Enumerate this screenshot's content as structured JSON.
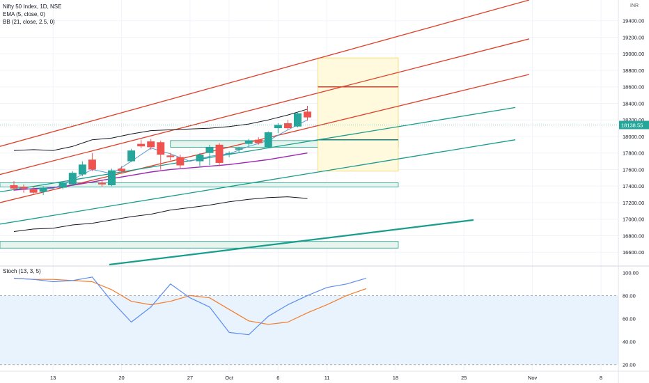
{
  "header": {
    "title": "Nifty 50 Index, 1D, NSE",
    "ema": "EMA (5, close, 0)",
    "bb": "BB (21, close, 2.5, 0)",
    "currency": "INR"
  },
  "colors": {
    "up": "#26a69a",
    "down": "#ef5350",
    "ema": "#5b9bd5",
    "bb_band": "#131722",
    "bb_basis": "#9c27b0",
    "channel_red": "#e0402a",
    "channel_teal": "#179d8c",
    "stoch_k": "#5b8def",
    "stoch_d": "#f57c2a",
    "zone_fill": "#e8f5ee",
    "target_fill": "#fff9dd",
    "stoch_bg": "#e8f3fd"
  },
  "chart_data": {
    "type": "candlestick",
    "price_axis": {
      "ylim": [
        16450,
        19650
      ],
      "ticks": [
        "16600.00",
        "16800.00",
        "17000.00",
        "17200.00",
        "17400.00",
        "17600.00",
        "17800.00",
        "18000.00",
        "18200.00",
        "18400.00",
        "18600.00",
        "18800.00",
        "19000.00",
        "19200.00",
        "19400.00"
      ],
      "last_price": "18138.55"
    },
    "time_axis": {
      "labels": [
        {
          "text": "13",
          "day": 13
        },
        {
          "text": "20",
          "day": 20
        },
        {
          "text": "27",
          "day": 27
        },
        {
          "text": "Oct",
          "day": 31
        },
        {
          "text": "6",
          "day": 36
        },
        {
          "text": "11",
          "day": 41
        },
        {
          "text": "18",
          "day": 48
        },
        {
          "text": "25",
          "day": 55
        },
        {
          "text": "Nov",
          "day": 62
        },
        {
          "text": "8",
          "day": 69
        }
      ]
    },
    "candles": [
      {
        "d": 9,
        "o": 17410,
        "h": 17460,
        "l": 17340,
        "c": 17370
      },
      {
        "d": 10,
        "o": 17390,
        "h": 17420,
        "l": 17320,
        "c": 17370
      },
      {
        "d": 11,
        "o": 17360,
        "h": 17400,
        "l": 17310,
        "c": 17320
      },
      {
        "d": 12,
        "o": 17330,
        "h": 17400,
        "l": 17290,
        "c": 17380
      },
      {
        "d": 14,
        "o": 17380,
        "h": 17460,
        "l": 17360,
        "c": 17440
      },
      {
        "d": 15,
        "o": 17420,
        "h": 17580,
        "l": 17410,
        "c": 17560
      },
      {
        "d": 16,
        "o": 17540,
        "h": 17700,
        "l": 17520,
        "c": 17660
      },
      {
        "d": 17,
        "o": 17720,
        "h": 17800,
        "l": 17580,
        "c": 17600
      },
      {
        "d": 18,
        "o": 17440,
        "h": 17480,
        "l": 17390,
        "c": 17420
      },
      {
        "d": 19,
        "o": 17410,
        "h": 17610,
        "l": 17400,
        "c": 17590
      },
      {
        "d": 20,
        "o": 17610,
        "h": 17640,
        "l": 17560,
        "c": 17580
      },
      {
        "d": 21,
        "o": 17700,
        "h": 17850,
        "l": 17690,
        "c": 17830
      },
      {
        "d": 22,
        "o": 17910,
        "h": 17960,
        "l": 17860,
        "c": 17880
      },
      {
        "d": 23,
        "o": 17940,
        "h": 17970,
        "l": 17840,
        "c": 17870
      },
      {
        "d": 24,
        "o": 17930,
        "h": 17950,
        "l": 17600,
        "c": 17780
      },
      {
        "d": 25,
        "o": 17770,
        "h": 17800,
        "l": 17710,
        "c": 17750
      },
      {
        "d": 26,
        "o": 17750,
        "h": 17780,
        "l": 17620,
        "c": 17650
      },
      {
        "d": 28,
        "o": 17700,
        "h": 17800,
        "l": 17640,
        "c": 17780
      },
      {
        "d": 29,
        "o": 17800,
        "h": 17900,
        "l": 17650,
        "c": 17870
      },
      {
        "d": 30,
        "o": 17900,
        "h": 17920,
        "l": 17640,
        "c": 17680
      },
      {
        "d": 31,
        "o": 17790,
        "h": 17820,
        "l": 17750,
        "c": 17800
      },
      {
        "d": 32,
        "o": 17840,
        "h": 17870,
        "l": 17810,
        "c": 17860
      },
      {
        "d": 33,
        "o": 17910,
        "h": 17970,
        "l": 17880,
        "c": 17950
      },
      {
        "d": 34,
        "o": 17960,
        "h": 17990,
        "l": 17900,
        "c": 17920
      },
      {
        "d": 35,
        "o": 17870,
        "h": 18060,
        "l": 17860,
        "c": 18050
      },
      {
        "d": 36,
        "o": 18100,
        "h": 18160,
        "l": 18040,
        "c": 18140
      },
      {
        "d": 37,
        "o": 18160,
        "h": 18200,
        "l": 18080,
        "c": 18100
      },
      {
        "d": 38,
        "o": 18120,
        "h": 18300,
        "l": 18110,
        "c": 18280
      },
      {
        "d": 39,
        "o": 18300,
        "h": 18370,
        "l": 18190,
        "c": 18230
      }
    ],
    "ema": [
      [
        9,
        17390
      ],
      [
        11,
        17360
      ],
      [
        13,
        17370
      ],
      [
        15,
        17480
      ],
      [
        17,
        17600
      ],
      [
        19,
        17550
      ],
      [
        21,
        17700
      ],
      [
        23,
        17860
      ],
      [
        25,
        17790
      ],
      [
        27,
        17700
      ],
      [
        29,
        17760
      ],
      [
        31,
        17790
      ],
      [
        33,
        17880
      ],
      [
        35,
        17950
      ],
      [
        37,
        18080
      ],
      [
        39,
        18200
      ]
    ],
    "bb_upper": [
      [
        9,
        17830
      ],
      [
        11,
        17840
      ],
      [
        13,
        17830
      ],
      [
        15,
        17880
      ],
      [
        17,
        17960
      ],
      [
        19,
        17980
      ],
      [
        21,
        18030
      ],
      [
        23,
        18070
      ],
      [
        25,
        18080
      ],
      [
        27,
        18090
      ],
      [
        29,
        18100
      ],
      [
        31,
        18120
      ],
      [
        33,
        18150
      ],
      [
        35,
        18200
      ],
      [
        37,
        18260
      ],
      [
        39,
        18330
      ]
    ],
    "bb_basis": [
      [
        9,
        17350
      ],
      [
        11,
        17370
      ],
      [
        13,
        17380
      ],
      [
        15,
        17410
      ],
      [
        17,
        17450
      ],
      [
        19,
        17490
      ],
      [
        21,
        17530
      ],
      [
        23,
        17570
      ],
      [
        25,
        17600
      ],
      [
        27,
        17620
      ],
      [
        29,
        17640
      ],
      [
        31,
        17660
      ],
      [
        33,
        17690
      ],
      [
        35,
        17720
      ],
      [
        37,
        17760
      ],
      [
        39,
        17800
      ]
    ],
    "bb_lower": [
      [
        9,
        16850
      ],
      [
        11,
        16880
      ],
      [
        13,
        16890
      ],
      [
        15,
        16930
      ],
      [
        17,
        16950
      ],
      [
        19,
        16990
      ],
      [
        21,
        17030
      ],
      [
        23,
        17060
      ],
      [
        25,
        17110
      ],
      [
        27,
        17140
      ],
      [
        29,
        17170
      ],
      [
        31,
        17210
      ],
      [
        33,
        17240
      ],
      [
        35,
        17260
      ],
      [
        37,
        17270
      ],
      [
        39,
        17250
      ]
    ],
    "stoch": {
      "ylim": [
        15,
        105
      ],
      "ticks": [
        "20.00",
        "40.00",
        "60.00",
        "80.00",
        "100.00"
      ],
      "k": [
        [
          9,
          95
        ],
        [
          11,
          94
        ],
        [
          13,
          92
        ],
        [
          15,
          93
        ],
        [
          17,
          96
        ],
        [
          19,
          75
        ],
        [
          21,
          57
        ],
        [
          23,
          70
        ],
        [
          25,
          90
        ],
        [
          27,
          78
        ],
        [
          29,
          70
        ],
        [
          31,
          48
        ],
        [
          33,
          46
        ],
        [
          35,
          62
        ],
        [
          37,
          72
        ],
        [
          39,
          80
        ],
        [
          41,
          87
        ],
        [
          43,
          90
        ],
        [
          45,
          95
        ]
      ],
      "d": [
        [
          9,
          95
        ],
        [
          11,
          94
        ],
        [
          13,
          94
        ],
        [
          15,
          93
        ],
        [
          17,
          92
        ],
        [
          19,
          85
        ],
        [
          21,
          75
        ],
        [
          23,
          72
        ],
        [
          25,
          75
        ],
        [
          27,
          80
        ],
        [
          29,
          78
        ],
        [
          31,
          68
        ],
        [
          33,
          58
        ],
        [
          35,
          55
        ],
        [
          37,
          57
        ],
        [
          39,
          65
        ],
        [
          41,
          72
        ],
        [
          43,
          80
        ],
        [
          45,
          86
        ]
      ]
    }
  }
}
